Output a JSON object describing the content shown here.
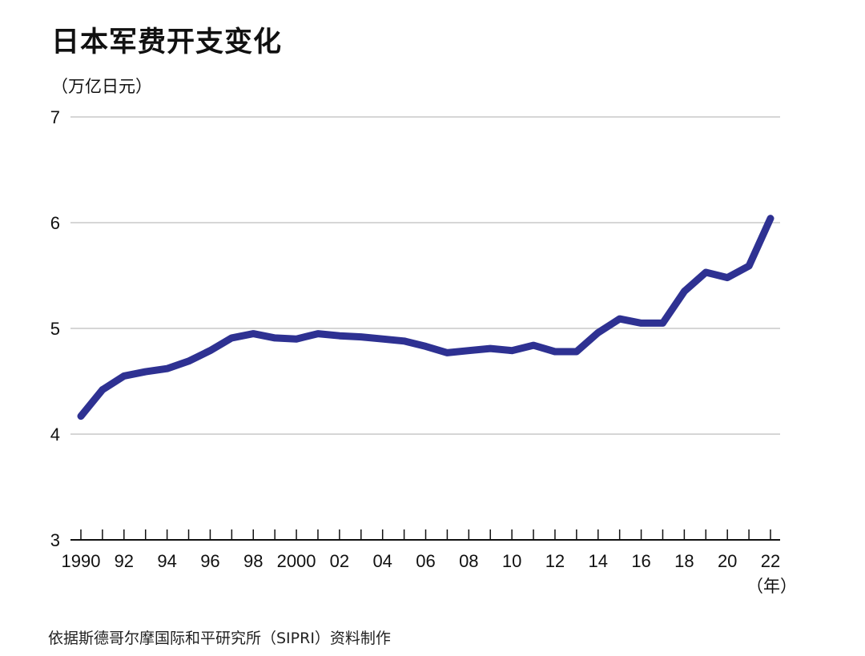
{
  "chart_data": {
    "type": "line",
    "title": "日本军费开支变化",
    "ylabel": "（万亿日元）",
    "xlabel": "（年）",
    "source": "依据斯德哥尔摩国际和平研究所（SIPRI）资料制作",
    "ylim": [
      3,
      7
    ],
    "yticks": [
      3,
      4,
      5,
      6,
      7
    ],
    "xlim": [
      1990,
      2022
    ],
    "xtick_labels": [
      {
        "x": 1990,
        "label": "1990"
      },
      {
        "x": 1992,
        "label": "92"
      },
      {
        "x": 1994,
        "label": "94"
      },
      {
        "x": 1996,
        "label": "96"
      },
      {
        "x": 1998,
        "label": "98"
      },
      {
        "x": 2000,
        "label": "2000"
      },
      {
        "x": 2002,
        "label": "02"
      },
      {
        "x": 2004,
        "label": "04"
      },
      {
        "x": 2006,
        "label": "06"
      },
      {
        "x": 2008,
        "label": "08"
      },
      {
        "x": 2010,
        "label": "10"
      },
      {
        "x": 2012,
        "label": "12"
      },
      {
        "x": 2014,
        "label": "14"
      },
      {
        "x": 2016,
        "label": "16"
      },
      {
        "x": 2018,
        "label": "18"
      },
      {
        "x": 2020,
        "label": "20"
      },
      {
        "x": 2022,
        "label": "22"
      }
    ],
    "grid": true,
    "line_color": "#2e3192",
    "x": [
      1990,
      1991,
      1992,
      1993,
      1994,
      1995,
      1996,
      1997,
      1998,
      1999,
      2000,
      2001,
      2002,
      2003,
      2004,
      2005,
      2006,
      2007,
      2008,
      2009,
      2010,
      2011,
      2012,
      2013,
      2014,
      2015,
      2016,
      2017,
      2018,
      2019,
      2020,
      2021,
      2022
    ],
    "values": [
      4.17,
      4.42,
      4.55,
      4.59,
      4.62,
      4.69,
      4.79,
      4.91,
      4.95,
      4.91,
      4.9,
      4.95,
      4.93,
      4.92,
      4.9,
      4.88,
      4.83,
      4.77,
      4.79,
      4.81,
      4.79,
      4.84,
      4.78,
      4.78,
      4.96,
      5.09,
      5.05,
      5.05,
      5.35,
      5.53,
      5.48,
      5.59,
      6.04
    ]
  }
}
